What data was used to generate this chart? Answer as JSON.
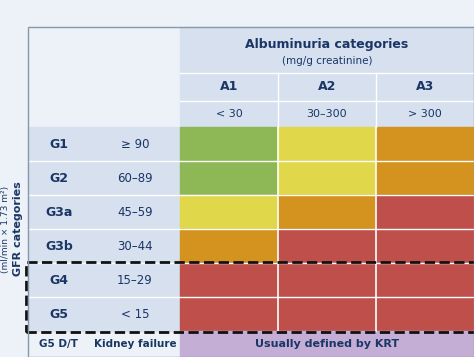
{
  "title_albuminuria": "Albuminuria categories",
  "subtitle_albuminuria": "(mg/g creatinine)",
  "col_labels": [
    "A1",
    "A2",
    "A3"
  ],
  "col_sublabels": [
    "< 30",
    "30–300",
    "> 300"
  ],
  "row_labels": [
    "G1",
    "G2",
    "G3a",
    "G3b",
    "G4",
    "G5"
  ],
  "row_sublabels": [
    "≥ 90",
    "60–89",
    "45–59",
    "30–44",
    "15–29",
    "< 15"
  ],
  "gfr_label_line1": "GFR categories",
  "gfr_label_line2": "(ml/min × 1.73 m²)",
  "bottom_row_col1": "G5 D/T",
  "bottom_row_col2": "Kidney failure",
  "bottom_row_col3": "Usually defined by KRT",
  "cell_colors": [
    [
      "#8db855",
      "#e0d84a",
      "#d4921e"
    ],
    [
      "#8db855",
      "#e0d84a",
      "#d4921e"
    ],
    [
      "#e0d84a",
      "#d4921e",
      "#bf4f4b"
    ],
    [
      "#d4921e",
      "#bf4f4b",
      "#bf4f4b"
    ],
    [
      "#bf4f4b",
      "#bf4f4b",
      "#bf4f4b"
    ],
    [
      "#bf4f4b",
      "#bf4f4b",
      "#bf4f4b"
    ]
  ],
  "bottom_krt_color": "#c5aed6",
  "header_bg": "#d6e0ef",
  "left_panel_bg": "#d6e0ef",
  "outer_bg": "#edf1f8",
  "font_color": "#1a3664",
  "white": "#ffffff",
  "fig_bg": "#edf1f8",
  "border_color": "#8899aa"
}
